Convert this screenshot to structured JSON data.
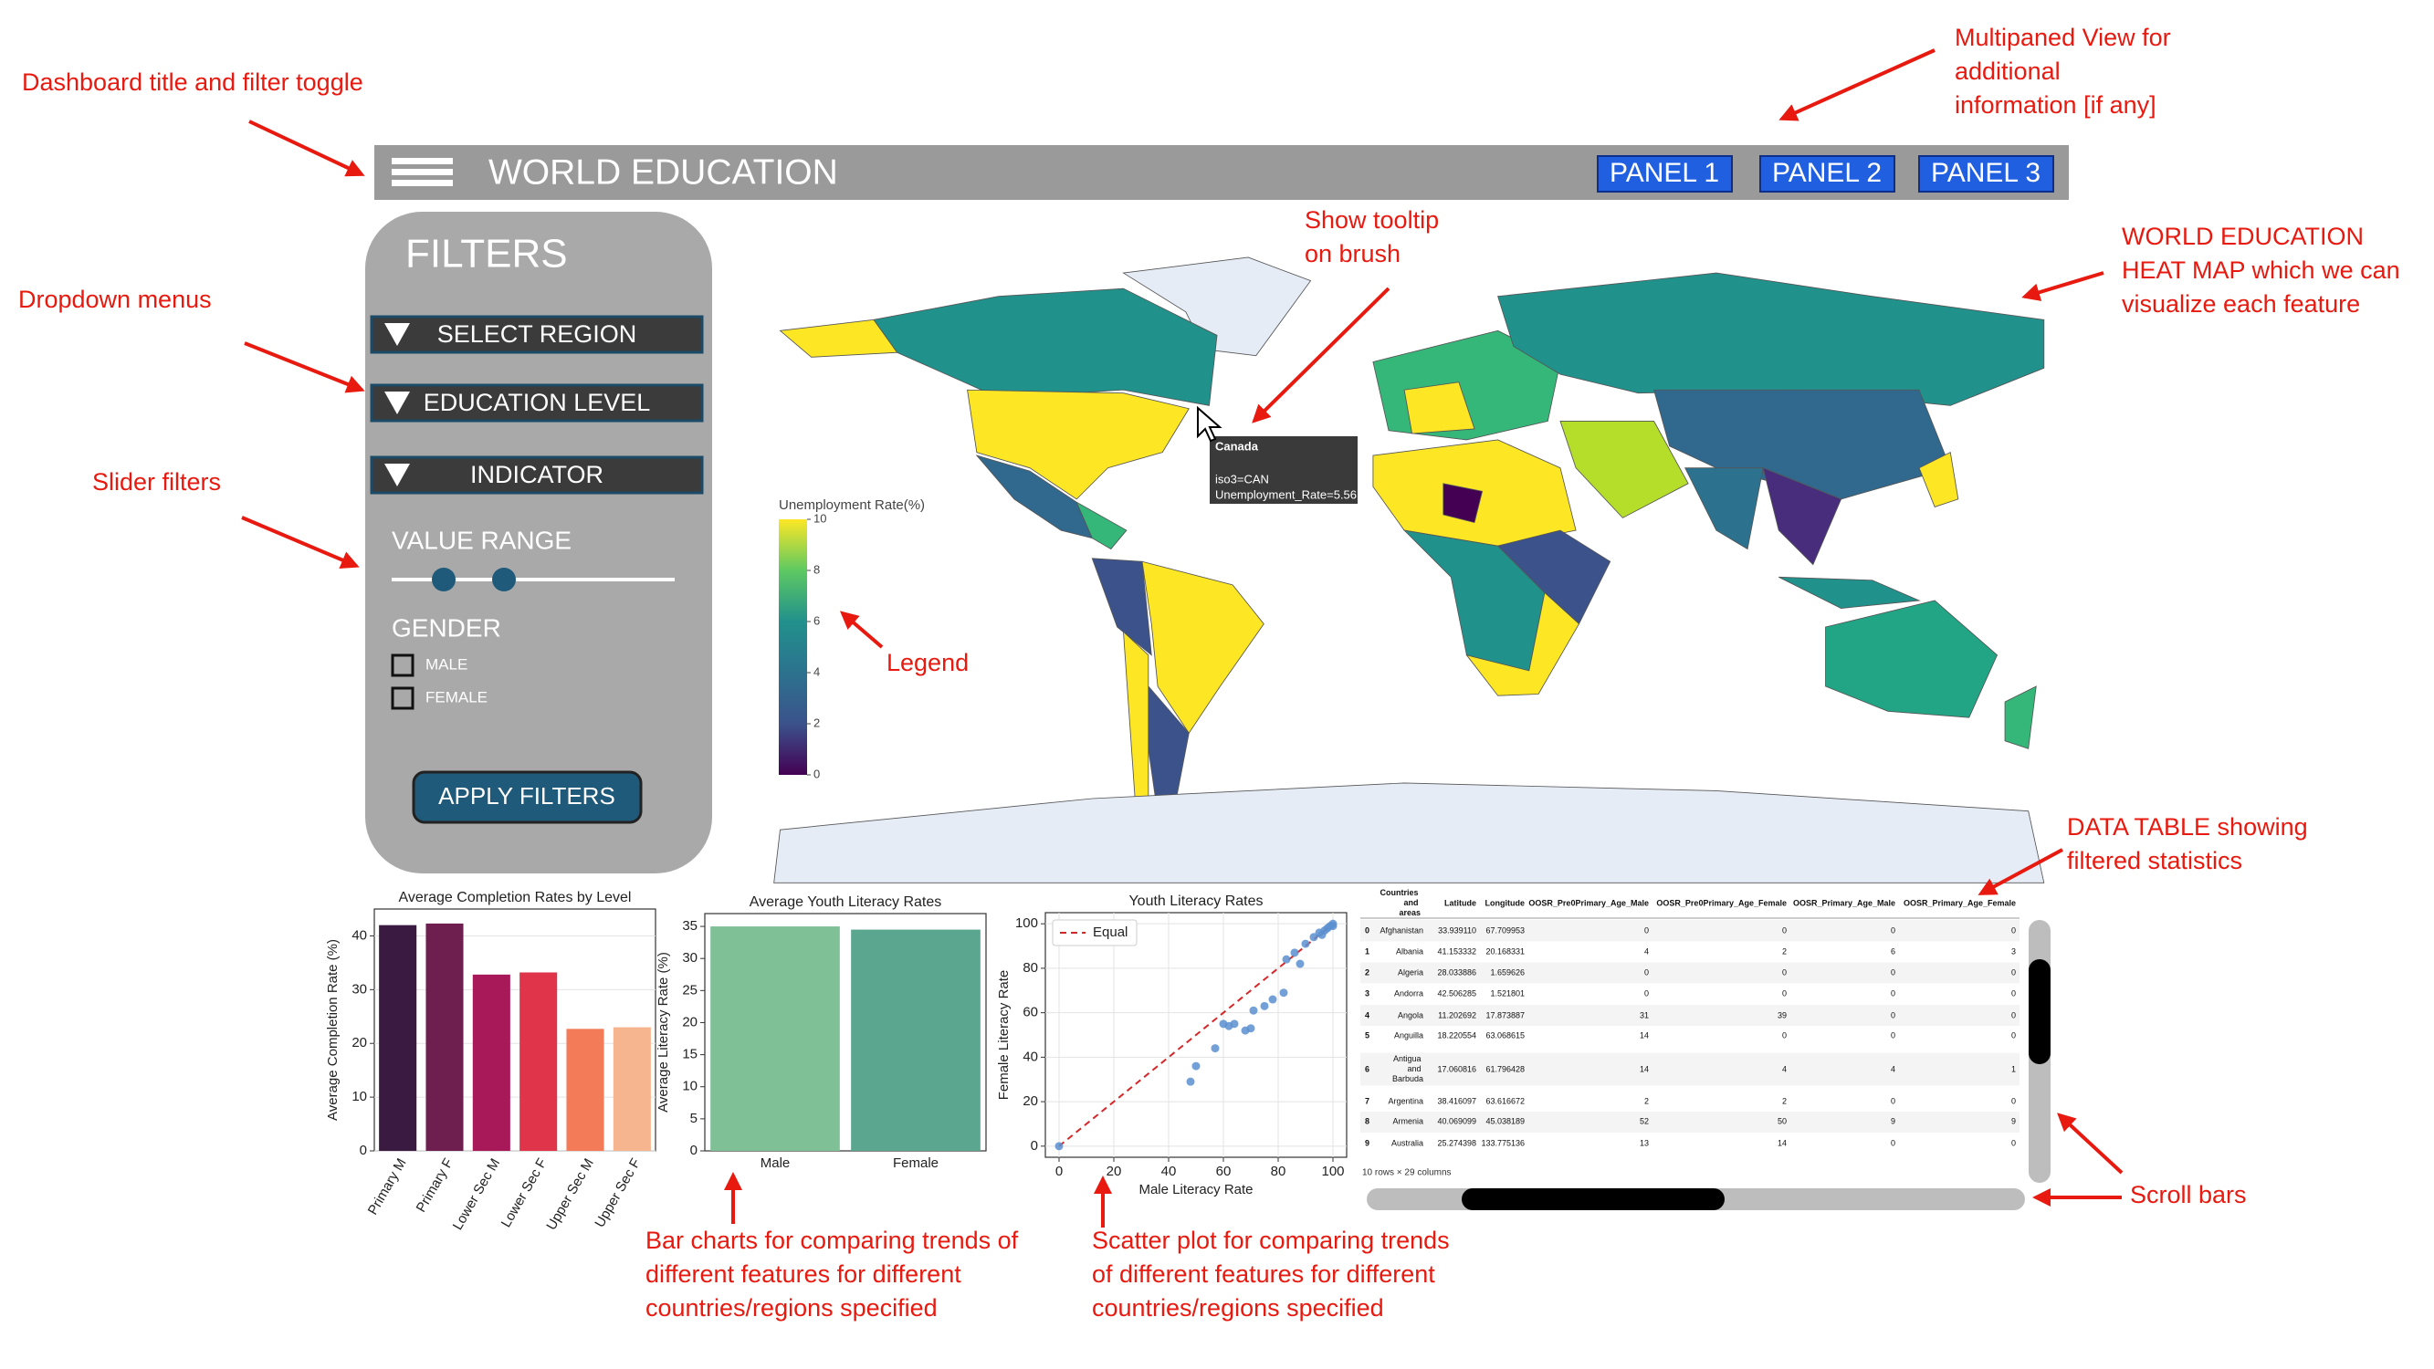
{
  "annotations": [
    {
      "lines": [
        "Dashboard title and filter toggle"
      ]
    },
    {
      "lines": [
        "Multipaned View for",
        "additional",
        "information [if any]"
      ]
    },
    {
      "lines": [
        "Show tooltip",
        "on brush"
      ]
    },
    {
      "lines": [
        "WORLD EDUCATION",
        "HEAT MAP which we can",
        "visualize each feature"
      ]
    },
    {
      "lines": [
        "Dropdown menus"
      ]
    },
    {
      "lines": [
        "Slider filters"
      ]
    },
    {
      "lines": [
        "Legend"
      ]
    },
    {
      "lines": [
        "DATA TABLE showing",
        "filtered statistics"
      ]
    },
    {
      "lines": [
        "Scroll bars"
      ]
    },
    {
      "lines": [
        "Bar charts for comparing trends of",
        "different features for different",
        "countries/regions specified"
      ]
    },
    {
      "lines": [
        "Scatter plot for comparing trends",
        "of different features for different",
        "countries/regions specified"
      ]
    }
  ],
  "header": {
    "title": "WORLD EDUCATION",
    "panels": [
      "PANEL 1",
      "PANEL 2",
      "PANEL 3"
    ]
  },
  "filters": {
    "title": "FILTERS",
    "dropdowns": [
      "SELECT REGION",
      "EDUCATION LEVEL",
      "INDICATOR"
    ],
    "slider_label": "VALUE RANGE",
    "gender_label": "GENDER",
    "checkboxes": [
      "MALE",
      "FEMALE"
    ],
    "button": "APPLY FILTERS"
  },
  "map": {
    "legend_title": "Unemployment Rate(%)",
    "lim": [
      0,
      10
    ],
    "ticks": [
      0,
      2,
      4,
      6,
      8,
      10
    ],
    "tooltip": [
      "Canada",
      "iso3=CAN",
      "Unemployment_Rate=5.56"
    ]
  },
  "completion_chart": {
    "type": "bar",
    "title": "Average Completion Rates by Level",
    "y_label": "Average Completion Rate (%)",
    "categories": [
      "Primary M",
      "Primary F",
      "Lower Sec M",
      "Lower Sec F",
      "Upper Sec M",
      "Upper Sec F"
    ],
    "values": [
      42,
      42.3,
      32.8,
      33.2,
      22.7,
      23
    ],
    "colors": [
      "#3a1a40",
      "#6e1f50",
      "#a8195a",
      "#e0344a",
      "#f37b58",
      "#f6b48f"
    ],
    "ylim": [
      0,
      45
    ],
    "yticks": [
      0,
      10,
      20,
      30,
      40
    ],
    "grid": true
  },
  "literacy_chart": {
    "type": "bar",
    "title": "Average Youth Literacy Rates",
    "y_label": "Average Literacy Rate (%)",
    "categories": [
      "Male",
      "Female"
    ],
    "values": [
      35,
      34.5
    ],
    "colors": [
      "#7fc097",
      "#5aa68f"
    ],
    "ylim": [
      0,
      37
    ],
    "yticks": [
      0,
      5,
      10,
      15,
      20,
      25,
      30,
      35
    ],
    "grid": false
  },
  "scatter_chart": {
    "type": "scatter",
    "title": "Youth Literacy Rates",
    "x_label": "Male Literacy Rate",
    "y_label": "Female Literacy Rate",
    "x": [
      0,
      48,
      50,
      57,
      60,
      62,
      64,
      68,
      70,
      71,
      75,
      78,
      82,
      83,
      86,
      88,
      90,
      93,
      95,
      96,
      97,
      98,
      99,
      100,
      100
    ],
    "values": [
      0,
      29,
      36,
      44,
      55,
      54,
      55,
      52,
      53,
      61,
      63,
      66,
      69,
      84,
      87,
      82,
      91,
      94,
      96,
      95,
      97,
      98,
      99,
      100,
      99
    ],
    "color": "#5b8fd0",
    "reference_line": {
      "name": "Equal",
      "color": "#d62728"
    },
    "xlim": [
      -5,
      105
    ],
    "ylim": [
      -5,
      105
    ],
    "xticks": [
      0,
      20,
      40,
      60,
      80,
      100
    ],
    "yticks": [
      0,
      20,
      40,
      60,
      80,
      100
    ],
    "grid": true
  },
  "table": {
    "columns": [
      "",
      "Countries and areas",
      "Latitude",
      "Longitude",
      "OOSR_Pre0Primary_Age_Male",
      "OOSR_Pre0Primary_Age_Female",
      "OOSR_Primary_Age_Male",
      "OOSR_Primary_Age_Female"
    ],
    "rows": [
      [
        "0",
        "Afghanistan",
        "33.939110",
        "67.709953",
        "0",
        "0",
        "0",
        "0"
      ],
      [
        "1",
        "Albania",
        "41.153332",
        "20.168331",
        "4",
        "2",
        "6",
        "3"
      ],
      [
        "2",
        "Algeria",
        "28.033886",
        "1.659626",
        "0",
        "0",
        "0",
        "0"
      ],
      [
        "3",
        "Andorra",
        "42.506285",
        "1.521801",
        "0",
        "0",
        "0",
        "0"
      ],
      [
        "4",
        "Angola",
        "11.202692",
        "17.873887",
        "31",
        "39",
        "0",
        "0"
      ],
      [
        "5",
        "Anguilla",
        "18.220554",
        "63.068615",
        "14",
        "0",
        "0",
        "0"
      ],
      [
        "6",
        "Antigua and Barbuda",
        "17.060816",
        "61.796428",
        "14",
        "4",
        "4",
        "1"
      ],
      [
        "7",
        "Argentina",
        "38.416097",
        "63.616672",
        "2",
        "2",
        "0",
        "0"
      ],
      [
        "8",
        "Armenia",
        "40.069099",
        "45.038189",
        "52",
        "50",
        "9",
        "9"
      ],
      [
        "9",
        "Australia",
        "25.274398",
        "133.775136",
        "13",
        "14",
        "0",
        "0"
      ]
    ],
    "footer": "10 rows × 29 columns"
  }
}
